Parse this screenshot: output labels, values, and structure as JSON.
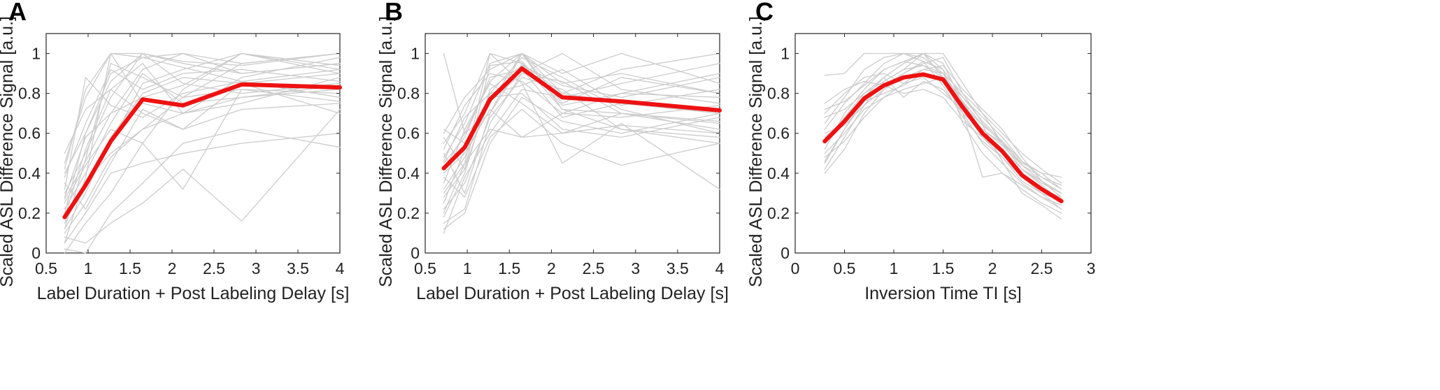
{
  "chart_data": [
    {
      "type": "line",
      "panel_label": "A",
      "xlabel": "Label Duration + Post Labeling Delay [s]",
      "ylabel": "Scaled ASL Difference Signal [a.u.]",
      "xlim": [
        0.5,
        4
      ],
      "ylim": [
        0,
        1.1
      ],
      "xticks": [
        0.5,
        1,
        1.5,
        2,
        2.5,
        3,
        3.5,
        4
      ],
      "xtick_labels": [
        "0.5",
        "1",
        "1.5",
        "2",
        "2.5",
        "3",
        "3.5",
        "4"
      ],
      "yticks": [
        0,
        0.2,
        0.4,
        0.6,
        0.8,
        1
      ],
      "ytick_labels": [
        "0",
        "0.2",
        "0.4",
        "0.6",
        "0.8",
        "1"
      ],
      "grid": false,
      "background_color": "#cccccc",
      "mean_color": "#ee1111",
      "x": [
        0.72,
        0.97,
        1.27,
        1.65,
        2.13,
        2.83,
        4.0
      ],
      "series": [
        {
          "role": "mean",
          "values": [
            0.18,
            0.34,
            0.56,
            0.77,
            0.74,
            0.845,
            0.83
          ]
        },
        {
          "role": "individual",
          "values": [
            0.05,
            0.38,
            1.0,
            1.0,
            0.95,
            0.9,
            0.95
          ]
        },
        {
          "role": "individual",
          "values": [
            0.12,
            0.47,
            0.95,
            0.88,
            0.78,
            0.82,
            0.76
          ]
        },
        {
          "role": "individual",
          "values": [
            0.28,
            0.58,
            0.7,
            0.92,
            1.0,
            0.95,
            1.0
          ]
        },
        {
          "role": "individual",
          "values": [
            0.35,
            0.22,
            0.45,
            0.72,
            0.62,
            0.85,
            0.9
          ]
        },
        {
          "role": "individual",
          "values": [
            0.0,
            0.15,
            0.3,
            0.55,
            0.82,
            1.0,
            0.92
          ]
        },
        {
          "role": "individual",
          "values": [
            0.2,
            0.6,
            0.9,
            0.98,
            0.93,
            0.86,
            0.78
          ]
        },
        {
          "role": "individual",
          "values": [
            0.42,
            0.82,
            1.0,
            0.75,
            0.7,
            0.88,
            0.98
          ]
        },
        {
          "role": "individual",
          "values": [
            0.1,
            0.25,
            0.48,
            0.62,
            0.78,
            0.95,
            1.0
          ]
        },
        {
          "role": "individual",
          "values": [
            0.3,
            0.5,
            0.78,
            1.0,
            0.85,
            0.8,
            0.85
          ]
        },
        {
          "role": "individual",
          "values": [
            0.15,
            0.35,
            0.55,
            0.85,
            0.92,
            1.0,
            0.9
          ]
        },
        {
          "role": "individual",
          "values": [
            0.5,
            0.72,
            0.82,
            0.7,
            0.62,
            0.72,
            0.75
          ]
        },
        {
          "role": "individual",
          "values": [
            0.08,
            0.05,
            0.15,
            0.25,
            0.42,
            0.16,
            0.72
          ]
        },
        {
          "role": "individual",
          "values": [
            0.25,
            0.44,
            0.62,
            0.55,
            0.32,
            0.82,
            0.8
          ]
        },
        {
          "role": "individual",
          "values": [
            0.02,
            0.0,
            0.2,
            0.35,
            0.55,
            0.62,
            0.53
          ]
        },
        {
          "role": "individual",
          "values": [
            0.38,
            0.65,
            0.92,
            0.82,
            0.9,
            0.92,
            0.86
          ]
        },
        {
          "role": "individual",
          "values": [
            0.22,
            0.4,
            0.65,
            0.9,
            0.75,
            0.78,
            0.82
          ]
        },
        {
          "role": "individual",
          "values": [
            0.45,
            0.78,
            1.0,
            0.98,
            1.0,
            0.9,
            0.95
          ]
        },
        {
          "role": "individual",
          "values": [
            0.12,
            0.3,
            0.58,
            0.8,
            0.88,
            0.85,
            0.7
          ]
        },
        {
          "role": "individual",
          "values": [
            0.32,
            0.88,
            0.74,
            0.68,
            0.8,
            0.86,
            0.92
          ]
        },
        {
          "role": "individual",
          "values": [
            0.18,
            0.52,
            0.82,
            0.95,
            0.7,
            0.75,
            0.88
          ]
        },
        {
          "role": "individual",
          "values": [
            0.05,
            0.2,
            0.4,
            0.45,
            0.5,
            0.55,
            0.6
          ]
        },
        {
          "role": "individual",
          "values": [
            0.27,
            0.46,
            0.7,
            0.78,
            0.84,
            1.0,
            0.94
          ]
        },
        {
          "role": "individual",
          "values": [
            0.4,
            0.6,
            0.86,
            1.0,
            0.96,
            0.94,
            1.0
          ]
        },
        {
          "role": "individual",
          "values": [
            0.15,
            0.36,
            0.5,
            0.62,
            0.7,
            0.78,
            0.84
          ]
        }
      ]
    },
    {
      "type": "line",
      "panel_label": "B",
      "xlabel": "Label Duration + Post Labeling Delay [s]",
      "ylabel": "Scaled ASL Difference Signal [a.u.]",
      "xlim": [
        0.5,
        4
      ],
      "ylim": [
        0,
        1.1
      ],
      "xticks": [
        0.5,
        1,
        1.5,
        2,
        2.5,
        3,
        3.5,
        4
      ],
      "xtick_labels": [
        "0.5",
        "1",
        "1.5",
        "2",
        "2.5",
        "3",
        "3.5",
        "4"
      ],
      "yticks": [
        0,
        0.2,
        0.4,
        0.6,
        0.8,
        1
      ],
      "ytick_labels": [
        "0",
        "0.2",
        "0.4",
        "0.6",
        "0.8",
        "1"
      ],
      "grid": false,
      "background_color": "#cccccc",
      "mean_color": "#ee1111",
      "x": [
        0.72,
        0.97,
        1.27,
        1.65,
        2.13,
        2.83,
        4.0
      ],
      "series": [
        {
          "role": "mean",
          "values": [
            0.425,
            0.53,
            0.77,
            0.925,
            0.78,
            0.76,
            0.715
          ]
        },
        {
          "role": "individual",
          "values": [
            0.2,
            0.45,
            1.0,
            0.95,
            0.8,
            0.75,
            0.7
          ]
        },
        {
          "role": "individual",
          "values": [
            0.5,
            0.3,
            0.7,
            1.0,
            0.85,
            0.9,
            0.8
          ]
        },
        {
          "role": "individual",
          "values": [
            0.35,
            0.62,
            0.85,
            0.75,
            0.6,
            0.7,
            0.65
          ]
        },
        {
          "role": "individual",
          "values": [
            0.6,
            0.78,
            0.92,
            1.0,
            0.72,
            0.62,
            0.55
          ]
        },
        {
          "role": "individual",
          "values": [
            0.15,
            0.22,
            0.65,
            0.9,
            1.0,
            0.82,
            0.75
          ]
        },
        {
          "role": "individual",
          "values": [
            0.4,
            0.5,
            0.72,
            0.58,
            0.7,
            0.8,
            0.9
          ]
        },
        {
          "role": "individual",
          "values": [
            0.28,
            0.42,
            0.8,
            0.98,
            0.88,
            0.72,
            0.6
          ]
        },
        {
          "role": "individual",
          "values": [
            0.55,
            0.7,
            1.0,
            0.85,
            0.45,
            0.65,
            0.32
          ]
        },
        {
          "role": "individual",
          "values": [
            0.1,
            0.38,
            0.6,
            0.82,
            0.78,
            0.85,
            0.95
          ]
        },
        {
          "role": "individual",
          "values": [
            0.45,
            0.58,
            0.88,
            0.92,
            0.68,
            0.75,
            0.72
          ]
        },
        {
          "role": "individual",
          "values": [
            0.32,
            0.48,
            0.75,
            1.0,
            0.9,
            1.0,
            0.85
          ]
        },
        {
          "role": "individual",
          "values": [
            0.62,
            0.55,
            0.78,
            0.8,
            0.62,
            0.58,
            0.68
          ]
        },
        {
          "role": "individual",
          "values": [
            0.22,
            0.35,
            0.68,
            0.88,
            0.82,
            0.62,
            0.58
          ]
        },
        {
          "role": "individual",
          "values": [
            0.48,
            0.65,
            0.95,
            1.0,
            0.75,
            0.88,
            0.8
          ]
        },
        {
          "role": "individual",
          "values": [
            1.0,
            0.6,
            0.7,
            0.95,
            0.72,
            0.7,
            0.62
          ]
        },
        {
          "role": "individual",
          "values": [
            0.38,
            0.28,
            0.58,
            0.72,
            0.55,
            0.44,
            0.55
          ]
        },
        {
          "role": "individual",
          "values": [
            0.18,
            0.4,
            0.82,
            0.94,
            0.84,
            0.78,
            0.88
          ]
        },
        {
          "role": "individual",
          "values": [
            0.52,
            0.74,
            0.9,
            0.86,
            0.7,
            0.68,
            0.74
          ]
        },
        {
          "role": "individual",
          "values": [
            0.3,
            0.45,
            0.62,
            0.58,
            0.6,
            0.64,
            0.6
          ]
        },
        {
          "role": "individual",
          "values": [
            0.42,
            0.6,
            0.86,
            1.0,
            0.8,
            0.92,
            1.0
          ]
        },
        {
          "role": "individual",
          "values": [
            0.25,
            0.52,
            0.76,
            0.9,
            0.86,
            0.7,
            0.66
          ]
        },
        {
          "role": "individual",
          "values": [
            0.58,
            0.42,
            0.94,
            0.96,
            0.74,
            0.8,
            0.78
          ]
        },
        {
          "role": "individual",
          "values": [
            0.12,
            0.2,
            0.55,
            0.78,
            0.66,
            0.6,
            0.7
          ]
        },
        {
          "role": "individual",
          "values": [
            0.46,
            0.68,
            0.8,
            0.84,
            0.92,
            0.74,
            0.82
          ]
        }
      ]
    },
    {
      "type": "line",
      "panel_label": "C",
      "xlabel": "Inversion Time TI [s]",
      "ylabel": "Scaled ASL Difference Signal [a.u.]",
      "xlim": [
        0,
        3
      ],
      "ylim": [
        0,
        1.1
      ],
      "xticks": [
        0,
        0.5,
        1,
        1.5,
        2,
        2.5,
        3
      ],
      "xtick_labels": [
        "0",
        "0.5",
        "1",
        "1.5",
        "2",
        "2.5",
        "3"
      ],
      "yticks": [
        0,
        0.2,
        0.4,
        0.6,
        0.8,
        1
      ],
      "ytick_labels": [
        "0",
        "0.2",
        "0.4",
        "0.6",
        "0.8",
        "1"
      ],
      "grid": false,
      "background_color": "#cccccc",
      "mean_color": "#ee1111",
      "x": [
        0.3,
        0.5,
        0.7,
        0.9,
        1.1,
        1.3,
        1.5,
        1.7,
        1.9,
        2.1,
        2.3,
        2.5,
        2.7
      ],
      "series": [
        {
          "role": "mean",
          "values": [
            0.56,
            0.66,
            0.775,
            0.84,
            0.88,
            0.895,
            0.87,
            0.73,
            0.6,
            0.51,
            0.39,
            0.32,
            0.26
          ]
        },
        {
          "role": "individual",
          "values": [
            0.89,
            0.9,
            1.0,
            1.0,
            1.0,
            1.0,
            1.0,
            0.85,
            0.7,
            0.55,
            0.42,
            0.35,
            0.3
          ]
        },
        {
          "role": "individual",
          "values": [
            0.4,
            0.52,
            0.7,
            0.82,
            0.9,
            0.95,
            0.98,
            0.8,
            0.65,
            0.55,
            0.45,
            0.4,
            0.38
          ]
        },
        {
          "role": "individual",
          "values": [
            0.55,
            0.68,
            0.8,
            0.86,
            0.92,
            1.0,
            0.95,
            0.75,
            0.6,
            0.5,
            0.4,
            0.33,
            0.27
          ]
        },
        {
          "role": "individual",
          "values": [
            0.62,
            0.75,
            0.85,
            0.95,
            1.0,
            0.98,
            0.9,
            0.7,
            0.55,
            0.45,
            0.35,
            0.28,
            0.22
          ]
        },
        {
          "role": "individual",
          "values": [
            0.5,
            0.6,
            0.72,
            0.78,
            0.82,
            0.85,
            0.88,
            0.78,
            0.68,
            0.58,
            0.46,
            0.38,
            0.32
          ]
        },
        {
          "role": "individual",
          "values": [
            0.45,
            0.62,
            0.78,
            0.88,
            0.95,
            1.0,
            0.92,
            0.65,
            0.5,
            0.4,
            0.32,
            0.25,
            0.2
          ]
        },
        {
          "role": "individual",
          "values": [
            0.7,
            0.8,
            0.88,
            0.9,
            0.85,
            0.88,
            0.8,
            0.72,
            0.62,
            0.55,
            0.42,
            0.36,
            0.3
          ]
        },
        {
          "role": "individual",
          "values": [
            0.58,
            0.66,
            0.76,
            0.8,
            0.84,
            0.9,
            0.86,
            0.7,
            0.38,
            0.4,
            0.34,
            0.28,
            0.24
          ]
        },
        {
          "role": "individual",
          "values": [
            0.65,
            0.78,
            0.92,
            0.98,
            1.0,
            0.96,
            0.84,
            0.68,
            0.56,
            0.48,
            0.38,
            0.3,
            0.26
          ]
        },
        {
          "role": "individual",
          "values": [
            0.48,
            0.56,
            0.68,
            0.78,
            0.85,
            0.92,
            0.9,
            0.8,
            0.7,
            0.6,
            0.5,
            0.42,
            0.35
          ]
        },
        {
          "role": "individual",
          "values": [
            0.75,
            0.82,
            0.86,
            0.84,
            0.8,
            0.82,
            0.78,
            0.66,
            0.58,
            0.5,
            0.4,
            0.32,
            0.28
          ]
        },
        {
          "role": "individual",
          "values": [
            0.52,
            0.7,
            0.82,
            0.92,
            0.96,
            1.0,
            0.88,
            0.74,
            0.64,
            0.46,
            0.3,
            0.24,
            0.17
          ]
        },
        {
          "role": "individual",
          "values": [
            0.6,
            0.64,
            0.74,
            0.82,
            0.88,
            0.92,
            0.94,
            0.82,
            0.72,
            0.62,
            0.48,
            0.36,
            0.3
          ]
        },
        {
          "role": "individual",
          "values": [
            0.42,
            0.58,
            0.74,
            0.86,
            0.92,
            0.94,
            0.9,
            0.76,
            0.6,
            0.52,
            0.42,
            0.34,
            0.26
          ]
        },
        {
          "role": "individual",
          "values": [
            0.68,
            0.72,
            0.8,
            0.88,
            0.78,
            0.86,
            0.82,
            0.7,
            0.62,
            0.54,
            0.44,
            0.36,
            0.28
          ]
        },
        {
          "role": "individual",
          "values": [
            0.56,
            0.66,
            0.78,
            0.84,
            0.9,
            0.96,
            0.92,
            0.78,
            0.66,
            0.56,
            0.44,
            0.38,
            0.34
          ]
        },
        {
          "role": "individual",
          "values": [
            0.46,
            0.62,
            0.76,
            0.84,
            0.88,
            0.9,
            0.86,
            0.72,
            0.58,
            0.48,
            0.36,
            0.3,
            0.22
          ]
        },
        {
          "role": "individual",
          "values": [
            0.72,
            0.76,
            0.84,
            0.92,
            0.96,
            0.94,
            0.88,
            0.76,
            0.64,
            0.56,
            0.46,
            0.4,
            0.32
          ]
        }
      ]
    }
  ]
}
